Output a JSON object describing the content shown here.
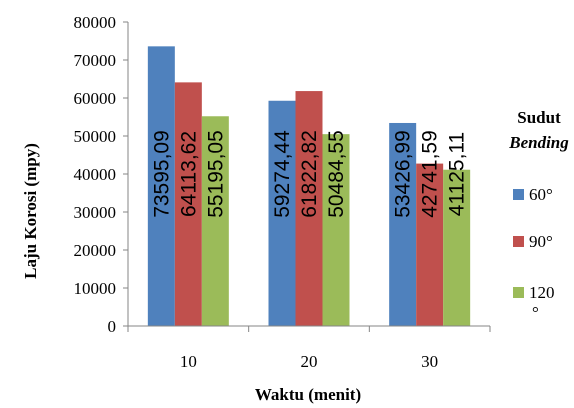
{
  "chart_data": {
    "type": "bar",
    "categories": [
      "10",
      "20",
      "30"
    ],
    "series": [
      {
        "name": "60°",
        "values": [
          73595.09,
          59274.44,
          53426.99
        ],
        "labels": [
          "73595,09",
          "59274,44",
          "53426,99"
        ],
        "color": "#4f81bd"
      },
      {
        "name": "90°",
        "values": [
          64113.62,
          61822.82,
          42741.59
        ],
        "labels": [
          "64113,62",
          "61822,82",
          "42741,59"
        ],
        "color": "#c0504d"
      },
      {
        "name": "120 °",
        "values": [
          55195.05,
          50484.55,
          41125.11
        ],
        "labels": [
          "55195,05",
          "50484,55",
          "41125,11"
        ],
        "color": "#9bbb59"
      }
    ],
    "xlabel": "Waktu  (menit)",
    "ylabel": "Laju Korosi (mpy)",
    "ylim": [
      0,
      80000
    ],
    "yticks": [
      "0",
      "10000",
      "20000",
      "30000",
      "40000",
      "50000",
      "60000",
      "70000",
      "80000"
    ],
    "legend_title": "Sudut",
    "legend_title_em": "Bending",
    "legend_position": "right",
    "grid": false
  }
}
